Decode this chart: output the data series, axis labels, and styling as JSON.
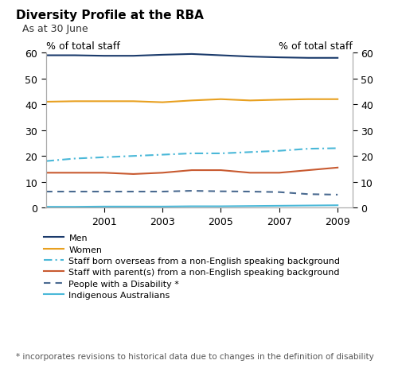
{
  "title": "Diversity Profile at the RBA",
  "subtitle": "As at 30 June",
  "ylabel_left": "% of total staff",
  "ylabel_right": "% of total staff",
  "footnote": "* incorporates revisions to historical data due to changes in the definition of disability",
  "years": [
    1999,
    2000,
    2001,
    2002,
    2003,
    2004,
    2005,
    2006,
    2007,
    2008,
    2009
  ],
  "men": [
    59.0,
    59.0,
    58.8,
    58.8,
    59.2,
    59.5,
    59.0,
    58.5,
    58.2,
    58.0,
    58.0
  ],
  "women": [
    41.0,
    41.2,
    41.2,
    41.2,
    40.8,
    41.5,
    42.0,
    41.5,
    41.8,
    42.0,
    42.0
  ],
  "born_overseas": [
    18.0,
    19.0,
    19.5,
    20.0,
    20.5,
    21.0,
    21.0,
    21.5,
    22.0,
    22.8,
    23.0
  ],
  "parents_overseas": [
    13.5,
    13.5,
    13.5,
    13.0,
    13.5,
    14.5,
    14.5,
    13.5,
    13.5,
    14.5,
    15.5
  ],
  "disability": [
    6.2,
    6.2,
    6.2,
    6.2,
    6.2,
    6.5,
    6.3,
    6.2,
    6.0,
    5.2,
    5.0
  ],
  "indigenous": [
    0.3,
    0.3,
    0.4,
    0.4,
    0.4,
    0.5,
    0.5,
    0.6,
    0.7,
    0.8,
    0.9
  ],
  "color_men": "#1a3a6b",
  "color_women": "#e8a020",
  "color_born_overseas": "#4ab8d8",
  "color_parents_overseas": "#c85a30",
  "color_disability": "#4a6a90",
  "color_indigenous": "#4ab8d8",
  "ylim": [
    0,
    60
  ],
  "yticks": [
    0,
    10,
    20,
    30,
    40,
    50,
    60
  ],
  "xtick_years": [
    2001,
    2003,
    2005,
    2007,
    2009
  ],
  "background_color": "#ffffff"
}
